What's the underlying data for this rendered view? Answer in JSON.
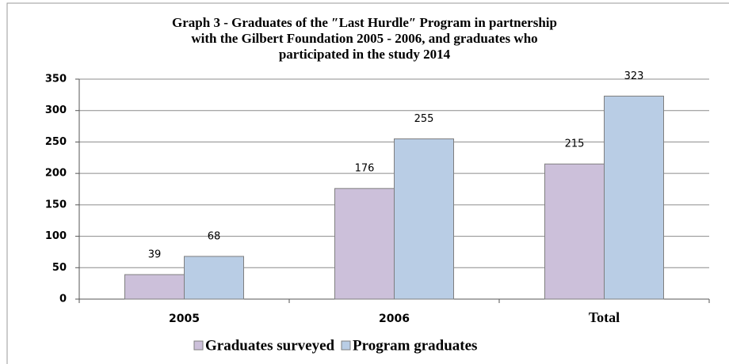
{
  "chart_data": {
    "type": "bar",
    "title": [
      "Graph 3 - Graduates of the ″Last Hurdle″ Program in partnership",
      "with the Gilbert Foundation 2005 - 2006, and graduates who",
      "participated in the study 2014"
    ],
    "categories": [
      "2005",
      "2006",
      "Total"
    ],
    "series": [
      {
        "name": "Graduates surveyed",
        "color": "#ccc0da",
        "values": [
          39,
          176,
          215
        ]
      },
      {
        "name": "Program graduates",
        "color": "#b9cde5",
        "values": [
          68,
          255,
          323
        ]
      }
    ],
    "ylim": [
      0,
      350
    ],
    "yticks": [
      0,
      50,
      100,
      150,
      200,
      250,
      300,
      350
    ],
    "grid": true,
    "legend": "bottom"
  }
}
